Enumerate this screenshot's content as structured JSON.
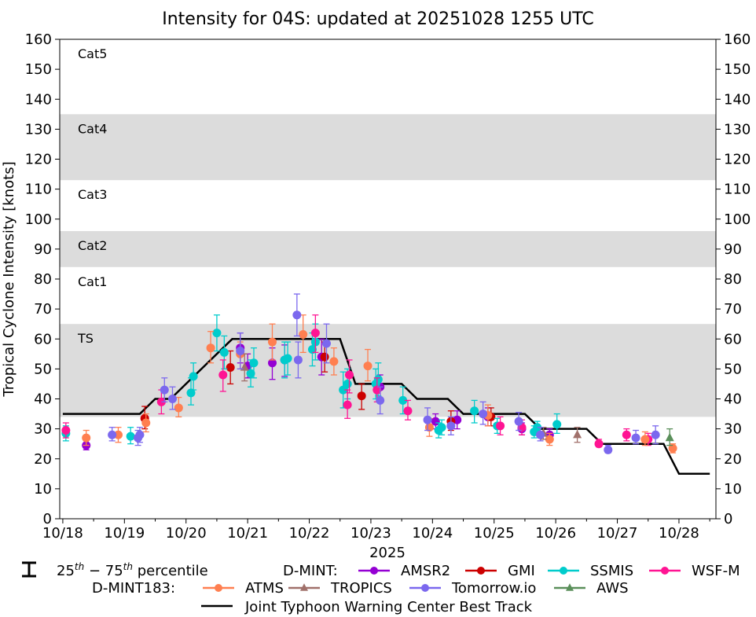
{
  "chart_data": {
    "type": "scatter",
    "title": "Intensity for 04S: updated at 20251028 1255 UTC",
    "xlabel": "2025",
    "ylabel": "Tropical Cyclone Intensity [knots]",
    "xlim": [
      17.95,
      28.6
    ],
    "ylim": [
      0,
      160
    ],
    "x_unit": "day of October 2025 (00 UTC)",
    "xtick_labels": [
      "10/18",
      "10/19",
      "10/20",
      "10/21",
      "10/22",
      "10/23",
      "10/24",
      "10/25",
      "10/26",
      "10/27",
      "10/28"
    ],
    "xtick_values": [
      18,
      19,
      20,
      21,
      22,
      23,
      24,
      25,
      26,
      27,
      28
    ],
    "ytick_values": [
      0,
      10,
      20,
      30,
      40,
      50,
      60,
      70,
      80,
      90,
      100,
      110,
      120,
      130,
      140,
      150,
      160
    ],
    "categories": [
      {
        "name": "TS",
        "range": [
          34,
          65
        ],
        "shaded": true
      },
      {
        "name": "Cat1",
        "range": [
          65,
          84
        ],
        "shaded": false
      },
      {
        "name": "Cat2",
        "range": [
          84,
          96
        ],
        "shaded": true
      },
      {
        "name": "Cat3",
        "range": [
          96,
          113
        ],
        "shaded": false
      },
      {
        "name": "Cat4",
        "range": [
          113,
          135
        ],
        "shaded": true
      },
      {
        "name": "Cat5",
        "range": [
          135,
          160
        ],
        "shaded": false
      }
    ],
    "best_track": {
      "name": "Joint Typhoon Warning Center Best Track",
      "color": "#000000",
      "x": [
        18.0,
        19.0,
        19.25,
        19.5,
        19.75,
        20.0,
        20.25,
        20.5,
        20.75,
        21.0,
        21.25,
        21.5,
        21.75,
        22.0,
        22.25,
        22.5,
        22.75,
        23.0,
        23.25,
        23.5,
        23.75,
        24.0,
        24.25,
        24.5,
        24.75,
        25.0,
        25.25,
        25.5,
        25.75,
        26.0,
        26.25,
        26.5,
        26.75,
        27.0,
        27.25,
        27.5,
        27.75,
        28.0,
        28.25,
        28.5
      ],
      "y": [
        35,
        35,
        35,
        40,
        40,
        45,
        50,
        55,
        60,
        60,
        60,
        60,
        60,
        60,
        60,
        60,
        45,
        45,
        45,
        45,
        40,
        40,
        40,
        35,
        35,
        35,
        35,
        35,
        30,
        30,
        30,
        30,
        25,
        25,
        25,
        25,
        25,
        15,
        15,
        15
      ]
    },
    "series": [
      {
        "name": "AMSR2",
        "group": "D-MINT",
        "color": "#9400d3",
        "marker": "circle",
        "points": [
          [
            18.38,
            24.5,
            23,
            26.5
          ],
          [
            20.88,
            57,
            52,
            62
          ],
          [
            21.0,
            51,
            47,
            55
          ],
          [
            21.4,
            52,
            46.5,
            57
          ],
          [
            21.6,
            53,
            47.5,
            58
          ],
          [
            22.2,
            54,
            48,
            60
          ],
          [
            23.15,
            44,
            40,
            48
          ],
          [
            24.05,
            32.5,
            30,
            35
          ],
          [
            24.4,
            33,
            30,
            36
          ],
          [
            24.9,
            34,
            31,
            37
          ],
          [
            25.45,
            30,
            28,
            32
          ],
          [
            25.9,
            28,
            26.5,
            30
          ]
        ]
      },
      {
        "name": "GMI",
        "group": "D-MINT",
        "color": "#cc0000",
        "marker": "circle",
        "points": [
          [
            19.33,
            33.5,
            30,
            37.5
          ],
          [
            20.72,
            50.5,
            45,
            56
          ],
          [
            22.25,
            54,
            49,
            59
          ],
          [
            22.85,
            41,
            36.5,
            45
          ],
          [
            24.3,
            32.5,
            29.5,
            36
          ],
          [
            24.95,
            34,
            31,
            37
          ]
        ]
      },
      {
        "name": "SSMIS",
        "group": "D-MINT",
        "color": "#00cccc",
        "marker": "circle",
        "points": [
          [
            18.05,
            28.5,
            26,
            31
          ],
          [
            19.1,
            27.5,
            25,
            30.5
          ],
          [
            20.08,
            42,
            38,
            47
          ],
          [
            20.12,
            47.5,
            43,
            52
          ],
          [
            20.5,
            62,
            56,
            68
          ],
          [
            20.62,
            55.5,
            50,
            61
          ],
          [
            21.05,
            48.5,
            44,
            53
          ],
          [
            21.1,
            52,
            47,
            57
          ],
          [
            21.6,
            53,
            47,
            59
          ],
          [
            21.65,
            53.5,
            48,
            59
          ],
          [
            22.05,
            56.5,
            51,
            62
          ],
          [
            22.1,
            59,
            53,
            65
          ],
          [
            22.55,
            43,
            37,
            49
          ],
          [
            22.62,
            45,
            40,
            50
          ],
          [
            23.08,
            45,
            40,
            50
          ],
          [
            23.12,
            46.5,
            41,
            52
          ],
          [
            23.52,
            39.5,
            35,
            44
          ],
          [
            24.1,
            29.5,
            27,
            32
          ],
          [
            24.15,
            30.5,
            28,
            33
          ],
          [
            24.68,
            36,
            32,
            39.5
          ],
          [
            25.05,
            31,
            28.5,
            33.5
          ],
          [
            25.65,
            29,
            27,
            31
          ],
          [
            25.7,
            30.5,
            28.5,
            32.5
          ],
          [
            26.02,
            31.5,
            28.5,
            35
          ]
        ]
      },
      {
        "name": "WSF-M",
        "group": "D-MINT",
        "color": "#ff1493",
        "marker": "circle",
        "points": [
          [
            18.05,
            29.5,
            27,
            32
          ],
          [
            19.6,
            39,
            35,
            43
          ],
          [
            20.6,
            48,
            42.5,
            53
          ],
          [
            22.1,
            62,
            55.5,
            68
          ],
          [
            22.62,
            38,
            33.5,
            43
          ],
          [
            22.65,
            48,
            42,
            53
          ],
          [
            23.1,
            43,
            39,
            47
          ],
          [
            23.6,
            36,
            33,
            39.5
          ],
          [
            25.1,
            31,
            28,
            34
          ],
          [
            25.45,
            30.5,
            28,
            33
          ],
          [
            26.7,
            25,
            24,
            26.5
          ],
          [
            27.15,
            28,
            26,
            30
          ],
          [
            27.5,
            26.5,
            24.5,
            28.5
          ]
        ]
      },
      {
        "name": "ATMS",
        "group": "D-MINT183",
        "color": "#ff7f50",
        "marker": "circle",
        "points": [
          [
            18.38,
            27,
            24.5,
            29.5
          ],
          [
            18.9,
            28,
            25.5,
            30.5
          ],
          [
            19.35,
            32,
            29,
            35
          ],
          [
            19.88,
            37,
            34,
            40.5
          ],
          [
            20.4,
            57,
            52,
            62.5
          ],
          [
            20.88,
            55,
            50,
            59
          ],
          [
            21.4,
            59,
            53,
            65
          ],
          [
            21.9,
            61.5,
            55.5,
            68
          ],
          [
            22.4,
            52.5,
            48,
            57
          ],
          [
            22.95,
            51,
            46,
            56.5
          ],
          [
            23.95,
            30.5,
            27.5,
            33.5
          ],
          [
            24.9,
            34.5,
            31,
            38
          ],
          [
            25.9,
            26.5,
            24.5,
            28.5
          ],
          [
            27.45,
            26.5,
            24.5,
            29
          ],
          [
            27.9,
            23.5,
            22,
            25
          ]
        ]
      },
      {
        "name": "TROPICS",
        "group": "D-MINT183",
        "color": "#a0706a",
        "marker": "triangle",
        "points": [
          [
            20.95,
            50.5,
            46,
            55
          ],
          [
            25.8,
            28.5,
            26.5,
            30.5
          ],
          [
            26.35,
            28,
            25.5,
            30.5
          ]
        ]
      },
      {
        "name": "Tomorrow.io",
        "group": "D-MINT183",
        "color": "#7b68ee",
        "marker": "circle",
        "points": [
          [
            18.8,
            28,
            26,
            30.5
          ],
          [
            19.22,
            27,
            24.5,
            29.5
          ],
          [
            19.25,
            28,
            25.5,
            30.5
          ],
          [
            19.65,
            43,
            39,
            47
          ],
          [
            19.78,
            40,
            36.5,
            44
          ],
          [
            20.88,
            56,
            50,
            62
          ],
          [
            21.8,
            68,
            61,
            75
          ],
          [
            21.82,
            53,
            47,
            59
          ],
          [
            22.28,
            58.5,
            52,
            65
          ],
          [
            23.15,
            39.5,
            35,
            44
          ],
          [
            23.92,
            33,
            29.5,
            37
          ],
          [
            24.3,
            31,
            28,
            34
          ],
          [
            24.82,
            35,
            31.5,
            39
          ],
          [
            25.4,
            32.5,
            29.5,
            35.5
          ],
          [
            25.75,
            28,
            26,
            30.5
          ],
          [
            26.85,
            23,
            22,
            24.5
          ],
          [
            27.3,
            27,
            25,
            29.5
          ],
          [
            27.62,
            28,
            25,
            31
          ]
        ]
      },
      {
        "name": "AWS",
        "group": "D-MINT183",
        "color": "#5a8f5a",
        "marker": "triangle",
        "points": [
          [
            27.85,
            27,
            24.5,
            30
          ]
        ]
      }
    ]
  },
  "legend": {
    "percentile_label": "25th − 75th percentile",
    "d_mint_label": "D-MINT:",
    "d_mint183_label": "D-MINT183:"
  }
}
